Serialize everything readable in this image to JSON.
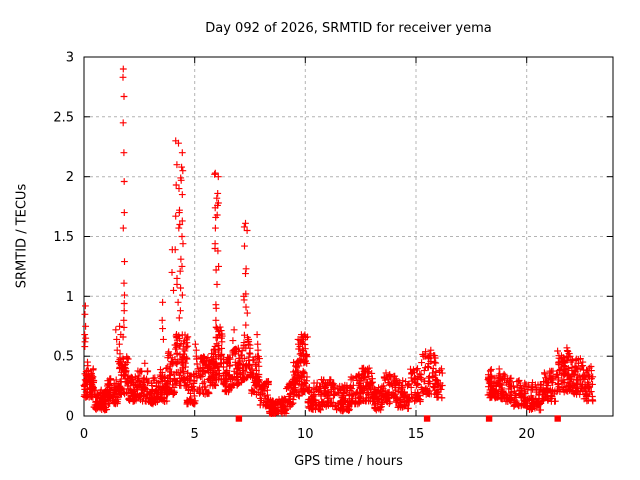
{
  "chart_data": {
    "type": "scatter",
    "title": "Day 092 of 2026, SRMTID for receiver yema",
    "xlabel": "GPS time / hours",
    "ylabel": "SRMTID / TECUs",
    "xlim": [
      0,
      23.9
    ],
    "ylim": [
      0,
      3
    ],
    "xticks": [
      0,
      5,
      10,
      15,
      20
    ],
    "yticks": [
      0,
      0.5,
      1,
      1.5,
      2,
      2.5,
      3
    ],
    "grid": true,
    "legend": "none",
    "marker": "plus",
    "marker_color": "#ff0000",
    "axis_color": "#000000",
    "grid_color": "#b4b4b4",
    "series": [
      {
        "name": "srmtid-noise-bands",
        "encoding": "dense scatter bands [hour_start, hour_end, value_min, value_max, point_count]",
        "bands": [
          [
            0.0,
            0.45,
            0.15,
            0.4,
            75
          ],
          [
            0.45,
            1.05,
            0.05,
            0.22,
            75
          ],
          [
            1.05,
            1.55,
            0.1,
            0.32,
            60
          ],
          [
            1.55,
            2.0,
            0.18,
            0.5,
            60
          ],
          [
            2.0,
            2.35,
            0.12,
            0.35,
            40
          ],
          [
            2.35,
            2.95,
            0.12,
            0.38,
            65
          ],
          [
            2.95,
            3.35,
            0.1,
            0.32,
            45
          ],
          [
            3.35,
            3.75,
            0.12,
            0.4,
            50
          ],
          [
            3.75,
            4.1,
            0.18,
            0.55,
            45
          ],
          [
            4.1,
            4.7,
            0.25,
            0.7,
            80
          ],
          [
            4.65,
            5.05,
            0.1,
            0.35,
            45
          ],
          [
            5.05,
            5.65,
            0.18,
            0.5,
            60
          ],
          [
            5.65,
            5.95,
            0.25,
            0.6,
            40
          ],
          [
            5.9,
            6.25,
            0.3,
            0.75,
            45
          ],
          [
            6.25,
            6.7,
            0.2,
            0.5,
            50
          ],
          [
            6.7,
            7.15,
            0.25,
            0.6,
            50
          ],
          [
            7.15,
            7.55,
            0.3,
            0.7,
            45
          ],
          [
            7.55,
            7.95,
            0.18,
            0.5,
            45
          ],
          [
            7.95,
            8.35,
            0.08,
            0.3,
            40
          ],
          [
            8.35,
            9.15,
            0.02,
            0.15,
            80
          ],
          [
            9.15,
            9.45,
            0.08,
            0.3,
            35
          ],
          [
            9.45,
            9.75,
            0.15,
            0.5,
            45
          ],
          [
            9.75,
            10.1,
            0.2,
            0.68,
            55
          ],
          [
            10.1,
            10.7,
            0.05,
            0.28,
            55
          ],
          [
            10.7,
            11.4,
            0.08,
            0.32,
            70
          ],
          [
            11.4,
            12.0,
            0.04,
            0.26,
            65
          ],
          [
            12.0,
            12.55,
            0.1,
            0.36,
            60
          ],
          [
            12.55,
            13.1,
            0.12,
            0.4,
            60
          ],
          [
            13.1,
            13.5,
            0.05,
            0.25,
            40
          ],
          [
            13.5,
            14.1,
            0.1,
            0.36,
            55
          ],
          [
            14.1,
            14.7,
            0.06,
            0.3,
            55
          ],
          [
            14.7,
            15.2,
            0.12,
            0.4,
            45
          ],
          [
            15.2,
            15.9,
            0.18,
            0.55,
            60
          ],
          [
            15.9,
            16.2,
            0.15,
            0.4,
            25
          ],
          [
            18.25,
            18.8,
            0.15,
            0.4,
            55
          ],
          [
            18.8,
            19.4,
            0.12,
            0.35,
            55
          ],
          [
            19.4,
            20.1,
            0.08,
            0.3,
            60
          ],
          [
            20.1,
            20.7,
            0.05,
            0.28,
            50
          ],
          [
            20.7,
            21.3,
            0.12,
            0.38,
            60
          ],
          [
            21.3,
            22.0,
            0.2,
            0.55,
            80
          ],
          [
            22.0,
            22.55,
            0.18,
            0.48,
            60
          ],
          [
            22.55,
            23.0,
            0.1,
            0.42,
            45
          ]
        ]
      },
      {
        "name": "srmtid-spike-columns",
        "encoding": "explicit high-value points at hour h with +/- jitter",
        "columns": [
          {
            "h": 0.05,
            "jitter": 0.04,
            "values": [
              0.92,
              0.85,
              0.75,
              0.68,
              0.65,
              0.62,
              0.58
            ]
          },
          {
            "h": 0.15,
            "jitter": 0.1,
            "values": [
              0.45,
              0.42
            ]
          },
          {
            "h": 1.45,
            "jitter": 0.06,
            "values": [
              0.72,
              0.64,
              0.55
            ]
          },
          {
            "h": 1.62,
            "jitter": 0.05,
            "values": [
              0.75,
              0.68,
              0.6,
              0.52
            ]
          },
          {
            "h": 1.8,
            "jitter": 0.04,
            "values": [
              2.9,
              2.83,
              2.67,
              2.45,
              2.2,
              1.96,
              1.7,
              1.57,
              1.29,
              1.11,
              1.01,
              0.94,
              0.88,
              0.8,
              0.74,
              0.66
            ]
          },
          {
            "h": 2.75,
            "jitter": 0.08,
            "values": [
              0.44
            ]
          },
          {
            "h": 3.55,
            "jitter": 0.06,
            "values": [
              0.95,
              0.8,
              0.73,
              0.64
            ]
          },
          {
            "h": 4.0,
            "jitter": 0.05,
            "values": [
              1.39,
              1.2,
              1.05
            ]
          },
          {
            "h": 4.3,
            "jitter": 0.18,
            "values": [
              2.3,
              2.28,
              2.2,
              2.1,
              2.08,
              2.05,
              1.99,
              1.97,
              1.93,
              1.9,
              1.85,
              1.72,
              1.7,
              1.67,
              1.63,
              1.6,
              1.57,
              1.5,
              1.44,
              1.39,
              1.31,
              1.25,
              1.21,
              1.15,
              1.1,
              1.07,
              1.01,
              0.95,
              0.88,
              0.82
            ]
          },
          {
            "h": 5.1,
            "jitter": 0.08,
            "values": [
              0.6,
              0.55
            ]
          },
          {
            "h": 6.0,
            "jitter": 0.1,
            "values": [
              2.03,
              2.02,
              2.0,
              1.86,
              1.82,
              1.78,
              1.76,
              1.74,
              1.68,
              1.66,
              1.57,
              1.44,
              1.4,
              1.38,
              1.25,
              1.22,
              1.1,
              0.93,
              0.9,
              0.8
            ]
          },
          {
            "h": 6.75,
            "jitter": 0.07,
            "values": [
              0.72,
              0.63,
              0.55
            ]
          },
          {
            "h": 7.3,
            "jitter": 0.08,
            "values": [
              1.61,
              1.58,
              1.55,
              1.42,
              1.23,
              1.19,
              1.02,
              1.0,
              0.97,
              0.91,
              0.86,
              0.76
            ]
          },
          {
            "h": 7.85,
            "jitter": 0.06,
            "values": [
              0.68,
              0.6,
              0.55
            ]
          },
          {
            "h": 9.8,
            "jitter": 0.15,
            "values": [
              0.68,
              0.66,
              0.64,
              0.62,
              0.6,
              0.58,
              0.56
            ]
          },
          {
            "h": 12.8,
            "jitter": 0.1,
            "values": [
              0.4,
              0.37
            ]
          },
          {
            "h": 13.7,
            "jitter": 0.08,
            "values": [
              0.36
            ]
          },
          {
            "h": 15.55,
            "jitter": 0.12,
            "values": [
              0.55,
              0.52,
              0.49
            ]
          },
          {
            "h": 21.85,
            "jitter": 0.12,
            "values": [
              0.57,
              0.54
            ]
          }
        ]
      },
      {
        "name": "axis-flag-squares",
        "encoding": "filled red squares sitting on the x-axis at value 0",
        "marker": "filled-square",
        "hours": [
          7.0,
          15.5,
          18.3,
          21.4
        ]
      }
    ]
  }
}
